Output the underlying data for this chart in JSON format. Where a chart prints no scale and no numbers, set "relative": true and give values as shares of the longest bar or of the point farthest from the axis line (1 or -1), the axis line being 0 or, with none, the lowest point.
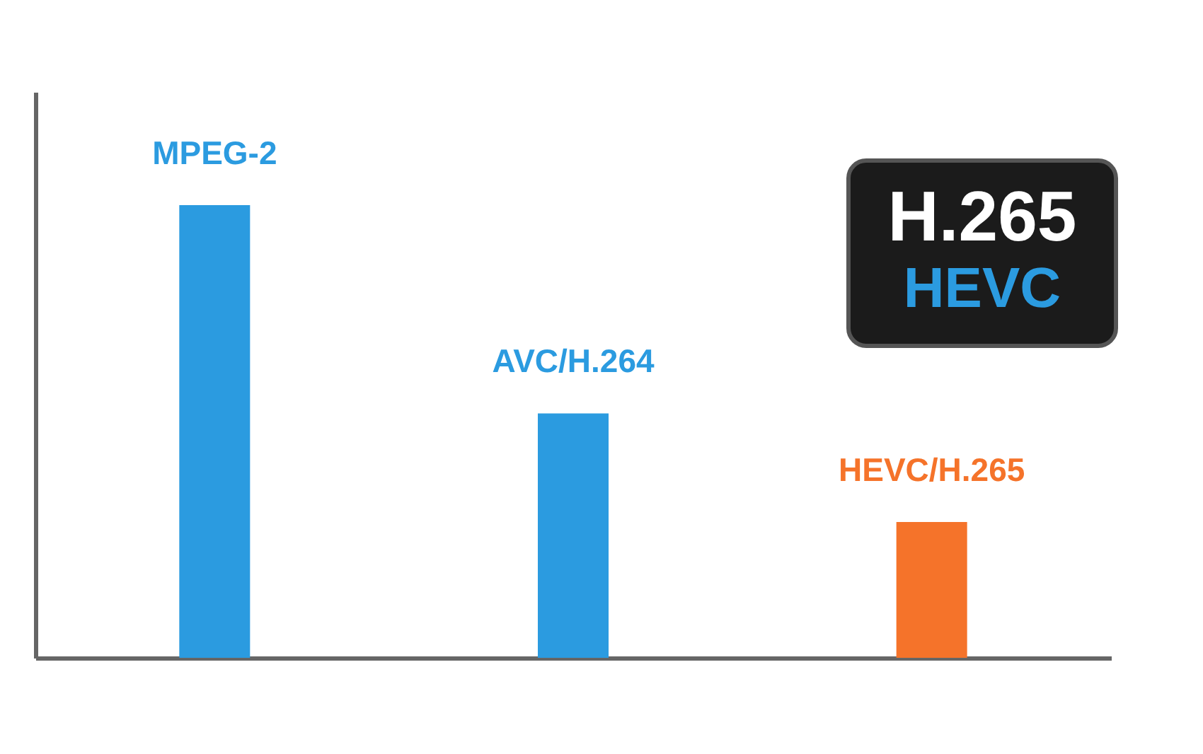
{
  "chart_data": {
    "type": "bar",
    "relative": true,
    "categories": [
      "MPEG-2",
      "AVC/H.264",
      "HEVC/H.265"
    ],
    "values": [
      1,
      0.54,
      0.3
    ],
    "colors": [
      "#2b9be0",
      "#2b9be0",
      "#f5732a"
    ],
    "annotations": [
      "H.265",
      "HEVC"
    ],
    "legend": false
  }
}
